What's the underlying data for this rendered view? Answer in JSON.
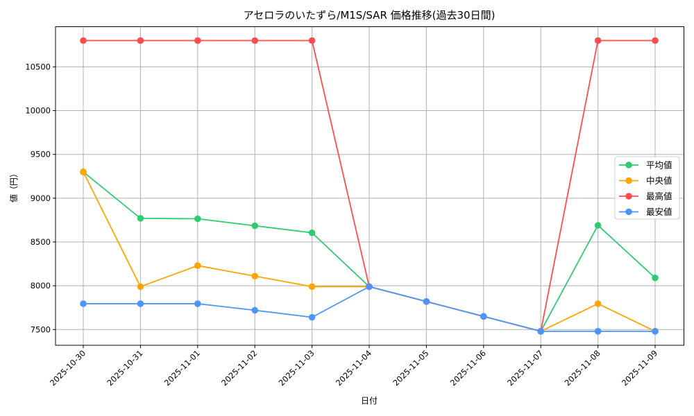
{
  "chart_data": {
    "type": "line",
    "title": "アセロラのいたずら/M1S/SAR 価格推移(過去30日間)",
    "xlabel": "日付",
    "ylabel": "値（円）",
    "categories": [
      "2025-10-30",
      "2025-10-31",
      "2025-11-01",
      "2025-11-02",
      "2025-11-03",
      "2025-11-04",
      "2025-11-05",
      "2025-11-06",
      "2025-11-07",
      "2025-11-08",
      "2025-11-09"
    ],
    "yticks": [
      7500,
      8000,
      8500,
      9000,
      9500,
      10000,
      10500
    ],
    "ylim": [
      7300,
      10950
    ],
    "grid": true,
    "legend_position": "center right",
    "series": [
      {
        "name": "平均値",
        "color": "#2ecc71",
        "values": [
          9300,
          8770,
          8765,
          8685,
          8605,
          7990,
          7820,
          7650,
          7480,
          8690,
          8090
        ]
      },
      {
        "name": "中央値",
        "color": "#ffa500",
        "values": [
          9300,
          7990,
          8230,
          8110,
          7990,
          7990,
          7820,
          7650,
          7480,
          7795,
          7480
        ]
      },
      {
        "name": "最高値",
        "color": "#ff4d4d",
        "values": [
          10800,
          10800,
          10800,
          10800,
          10800,
          7990,
          7820,
          7650,
          7480,
          10800,
          10800
        ]
      },
      {
        "name": "最安値",
        "color": "#4d94ff",
        "values": [
          7795,
          7795,
          7795,
          7720,
          7640,
          7990,
          7820,
          7650,
          7480,
          7480,
          7480
        ]
      }
    ]
  }
}
